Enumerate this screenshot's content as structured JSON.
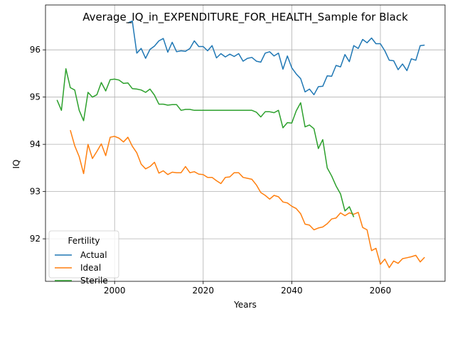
{
  "chart_data": {
    "type": "line",
    "title": "Average_IQ_in_EXPENDITURE_FOR_HEALTH_Sample for Black",
    "xlabel": "Years",
    "ylabel": "IQ",
    "xlim": [
      1984.4,
      2074.6
    ],
    "ylim": [
      91.1,
      96.95
    ],
    "xticks": [
      2000,
      2020,
      2040,
      2060
    ],
    "yticks": [
      92,
      93,
      94,
      95,
      96
    ],
    "grid": true,
    "legend": {
      "title": "Fertility",
      "placement": "lower-left"
    },
    "series": [
      {
        "name": "Actual",
        "color": "#1f77b4",
        "x": [
          2003,
          2004,
          2005,
          2006,
          2007,
          2008,
          2009,
          2010,
          2011,
          2012,
          2013,
          2014,
          2015,
          2016,
          2017,
          2018,
          2019,
          2020,
          2021,
          2022,
          2023,
          2024,
          2025,
          2026,
          2027,
          2028,
          2029,
          2030,
          2031,
          2032,
          2033,
          2034,
          2035,
          2036,
          2037,
          2038,
          2039,
          2040,
          2041,
          2042,
          2043,
          2044,
          2045,
          2046,
          2047,
          2048,
          2049,
          2050,
          2051,
          2052,
          2053,
          2054,
          2055,
          2056,
          2057,
          2058,
          2059,
          2060,
          2061,
          2062,
          2063,
          2064,
          2065,
          2066,
          2067,
          2068,
          2069,
          2070
        ],
        "y": [
          96.57,
          96.61,
          95.93,
          96.03,
          95.82,
          96.01,
          96.08,
          96.19,
          96.24,
          95.95,
          96.16,
          95.96,
          95.98,
          95.97,
          96.03,
          96.19,
          96.07,
          96.07,
          95.98,
          96.09,
          95.83,
          95.92,
          95.85,
          95.91,
          95.86,
          95.92,
          95.76,
          95.82,
          95.84,
          95.76,
          95.74,
          95.93,
          95.96,
          95.87,
          95.93,
          95.59,
          95.87,
          95.62,
          95.49,
          95.39,
          95.11,
          95.17,
          95.05,
          95.22,
          95.23,
          95.45,
          95.44,
          95.67,
          95.64,
          95.9,
          95.75,
          96.09,
          96.03,
          96.22,
          96.15,
          96.25,
          96.13,
          96.13,
          95.98,
          95.78,
          95.77,
          95.58,
          95.7,
          95.56,
          95.81,
          95.78,
          96.09,
          96.1
        ]
      },
      {
        "name": "Ideal",
        "color": "#ff7f0e",
        "x": [
          1990,
          1991,
          1992,
          1993,
          1994,
          1995,
          1996,
          1997,
          1998,
          1999,
          2000,
          2001,
          2002,
          2003,
          2004,
          2005,
          2006,
          2007,
          2008,
          2009,
          2010,
          2011,
          2012,
          2013,
          2014,
          2015,
          2016,
          2017,
          2018,
          2019,
          2020,
          2021,
          2022,
          2023,
          2024,
          2025,
          2026,
          2027,
          2028,
          2029,
          2030,
          2031,
          2032,
          2033,
          2034,
          2035,
          2036,
          2037,
          2038,
          2039,
          2040,
          2041,
          2042,
          2043,
          2044,
          2045,
          2046,
          2047,
          2048,
          2049,
          2050,
          2051,
          2052,
          2053,
          2054,
          2055,
          2056,
          2057,
          2058,
          2059,
          2060,
          2061,
          2062,
          2063,
          2064,
          2065,
          2066,
          2067,
          2068,
          2069,
          2070
        ],
        "y": [
          94.3,
          93.97,
          93.74,
          93.38,
          94.0,
          93.7,
          93.85,
          94.01,
          93.76,
          94.15,
          94.17,
          94.13,
          94.05,
          94.15,
          93.96,
          93.82,
          93.58,
          93.48,
          93.53,
          93.62,
          93.39,
          93.44,
          93.36,
          93.41,
          93.4,
          93.4,
          93.53,
          93.4,
          93.42,
          93.37,
          93.36,
          93.3,
          93.3,
          93.23,
          93.17,
          93.3,
          93.31,
          93.4,
          93.4,
          93.3,
          93.28,
          93.26,
          93.14,
          92.98,
          92.92,
          92.84,
          92.92,
          92.89,
          92.78,
          92.76,
          92.69,
          92.64,
          92.53,
          92.31,
          92.29,
          92.19,
          92.23,
          92.25,
          92.32,
          92.42,
          92.44,
          92.55,
          92.49,
          92.55,
          92.52,
          92.56,
          92.24,
          92.19,
          91.75,
          91.8,
          91.46,
          91.57,
          91.39,
          91.53,
          91.48,
          91.58,
          91.6,
          91.62,
          91.65,
          91.51,
          91.61
        ]
      },
      {
        "name": "Sterile",
        "color": "#2ca02c",
        "x": [
          1987,
          1988,
          1989,
          1990,
          1991,
          1992,
          1993,
          1994,
          1995,
          1996,
          1997,
          1998,
          1999,
          2000,
          2001,
          2002,
          2003,
          2004,
          2005,
          2006,
          2007,
          2008,
          2009,
          2010,
          2011,
          2012,
          2013,
          2014,
          2015,
          2016,
          2017,
          2018,
          2019,
          2020,
          2021,
          2022,
          2023,
          2024,
          2025,
          2026,
          2027,
          2028,
          2029,
          2030,
          2031,
          2032,
          2033,
          2034,
          2035,
          2036,
          2037,
          2038,
          2039,
          2040,
          2041,
          2042,
          2043,
          2044,
          2045,
          2046,
          2047,
          2048,
          2049,
          2050,
          2051,
          2052,
          2053,
          2054
        ],
        "y": [
          94.94,
          94.72,
          95.6,
          95.2,
          95.15,
          94.72,
          94.5,
          95.1,
          95.0,
          95.05,
          95.31,
          95.13,
          95.37,
          95.38,
          95.36,
          95.29,
          95.3,
          95.18,
          95.17,
          95.15,
          95.1,
          95.17,
          95.04,
          94.85,
          94.85,
          94.83,
          94.84,
          94.84,
          94.72,
          94.74,
          94.74,
          94.72,
          94.72,
          94.72,
          94.72,
          94.72,
          94.72,
          94.72,
          94.72,
          94.72,
          94.72,
          94.72,
          94.72,
          94.72,
          94.72,
          94.68,
          94.58,
          94.69,
          94.69,
          94.67,
          94.72,
          94.35,
          94.46,
          94.45,
          94.71,
          94.88,
          94.37,
          94.41,
          94.33,
          93.91,
          94.1,
          93.5,
          93.33,
          93.12,
          92.95,
          92.59,
          92.68,
          92.46
        ]
      }
    ]
  }
}
